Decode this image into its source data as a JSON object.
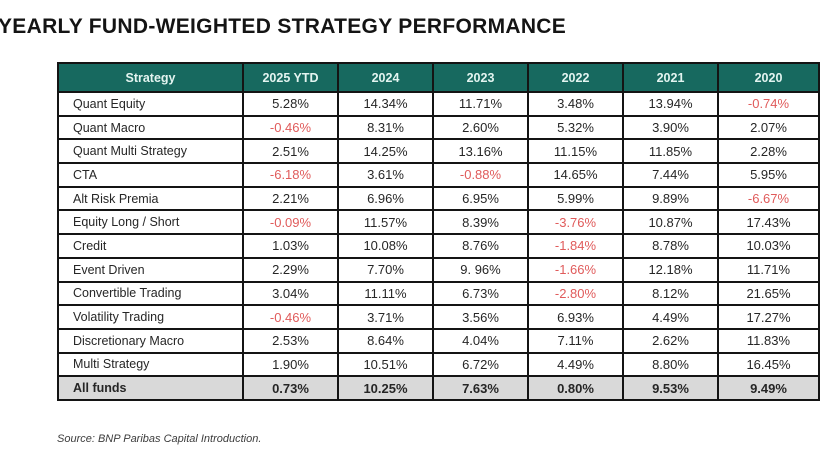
{
  "title": "YEARLY FUND-WEIGHTED STRATEGY PERFORMANCE",
  "source_note": "Source: BNP Paribas Capital Introduction.",
  "colors": {
    "header_bg": "#17695f",
    "header_text": "#e3f4f0",
    "negative_value": "#e05b5b",
    "body_text": "#262626",
    "all_funds_row_bg": "#d9d9d9",
    "grid_border": "#141414"
  },
  "chart_data": {
    "type": "table",
    "title": "YEARLY FUND-WEIGHTED STRATEGY PERFORMANCE",
    "columns": [
      "Strategy",
      "2025 YTD",
      "2024",
      "2023",
      "2022",
      "2021",
      "2020"
    ],
    "rows": [
      {
        "strategy": "Quant Equity",
        "values": [
          "5.28%",
          "14.34%",
          "11.71%",
          "3.48%",
          "13.94%",
          "-0.74%"
        ]
      },
      {
        "strategy": "Quant Macro",
        "values": [
          "-0.46%",
          "8.31%",
          "2.60%",
          "5.32%",
          "3.90%",
          "2.07%"
        ]
      },
      {
        "strategy": "Quant Multi Strategy",
        "values": [
          "2.51%",
          "14.25%",
          "13.16%",
          "11.15%",
          "11.85%",
          "2.28%"
        ]
      },
      {
        "strategy": "CTA",
        "values": [
          "-6.18%",
          "3.61%",
          "-0.88%",
          "14.65%",
          "7.44%",
          "5.95%"
        ]
      },
      {
        "strategy": "Alt Risk Premia",
        "values": [
          "2.21%",
          "6.96%",
          "6.95%",
          "5.99%",
          "9.89%",
          "-6.67%"
        ]
      },
      {
        "strategy": "Equity Long / Short",
        "values": [
          "-0.09%",
          "11.57%",
          "8.39%",
          "-3.76%",
          "10.87%",
          "17.43%"
        ]
      },
      {
        "strategy": "Credit",
        "values": [
          "1.03%",
          "10.08%",
          "8.76%",
          "-1.84%",
          "8.78%",
          "10.03%"
        ]
      },
      {
        "strategy": "Event Driven",
        "values": [
          "2.29%",
          "7.70%",
          "9. 96%",
          "-1.66%",
          "12.18%",
          "11.71%"
        ]
      },
      {
        "strategy": "Convertible Trading",
        "values": [
          "3.04%",
          "11.11%",
          "6.73%",
          "-2.80%",
          "8.12%",
          "21.65%"
        ]
      },
      {
        "strategy": "Volatility Trading",
        "values": [
          "-0.46%",
          "3.71%",
          "3.56%",
          "6.93%",
          "4.49%",
          "17.27%"
        ]
      },
      {
        "strategy": "Discretionary Macro",
        "values": [
          "2.53%",
          "8.64%",
          "4.04%",
          "7.11%",
          "2.62%",
          "11.83%"
        ]
      },
      {
        "strategy": "Multi Strategy",
        "values": [
          "1.90%",
          "10.51%",
          "6.72%",
          "4.49%",
          "8.80%",
          "16.45%"
        ]
      }
    ],
    "footer_row": {
      "strategy": "All funds",
      "values": [
        "0.73%",
        "10.25%",
        "7.63%",
        "0.80%",
        "9.53%",
        "9.49%"
      ]
    }
  }
}
